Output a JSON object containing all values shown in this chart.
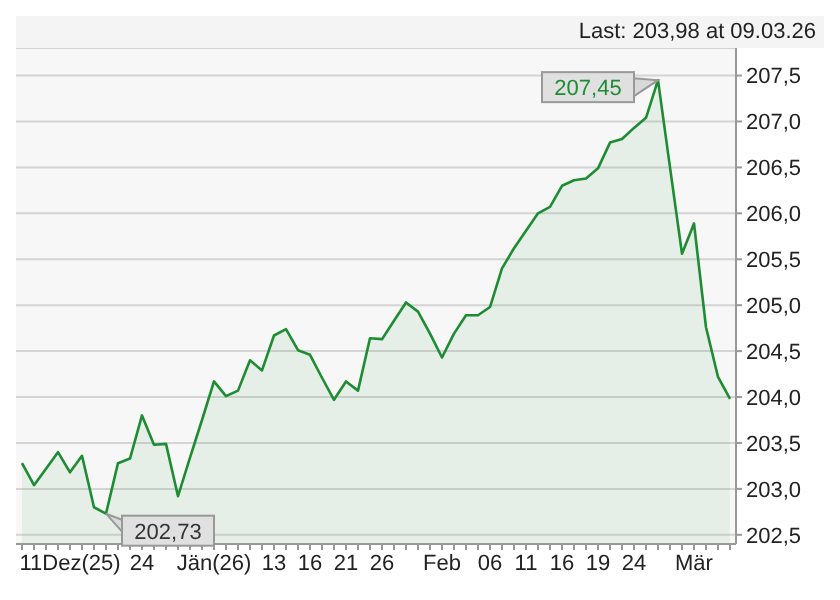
{
  "chart_data": {
    "type": "area",
    "title": "Last: 203,98 at 09.03.26",
    "categories": [
      null,
      null,
      null,
      null,
      "11Dez(25)",
      null,
      null,
      null,
      null,
      null,
      "24",
      null,
      null,
      null,
      null,
      null,
      "Jän(26)",
      null,
      null,
      null,
      null,
      "13",
      null,
      null,
      "16",
      null,
      null,
      "21",
      null,
      null,
      "26",
      null,
      null,
      null,
      null,
      "Feb",
      null,
      null,
      null,
      "06",
      null,
      null,
      "11",
      null,
      null,
      "16",
      null,
      null,
      "19",
      null,
      null,
      "24",
      null,
      null,
      null,
      null,
      "Mär",
      null,
      null,
      null
    ],
    "series": [
      {
        "color": "#1e8c32",
        "values": [
          203.28,
          203.04,
          203.22,
          203.4,
          203.18,
          203.36,
          202.8,
          202.73,
          203.28,
          203.33,
          203.8,
          203.48,
          203.49,
          202.92,
          203.34,
          203.75,
          204.17,
          204.01,
          204.07,
          204.4,
          204.29,
          204.67,
          204.74,
          204.51,
          204.46,
          204.21,
          203.97,
          204.17,
          204.07,
          204.64,
          204.63,
          204.83,
          205.03,
          204.93,
          204.69,
          204.43,
          204.69,
          204.89,
          204.89,
          204.98,
          205.4,
          205.62,
          205.81,
          206.0,
          206.07,
          206.3,
          206.36,
          206.38,
          206.49,
          206.77,
          206.81,
          206.93,
          207.04,
          207.45,
          206.5,
          205.56,
          205.89,
          204.76,
          204.22,
          203.98
        ]
      }
    ],
    "ylim": [
      202.4,
      207.8
    ],
    "yticks": [
      {
        "value": 202.5,
        "label": "202,5"
      },
      {
        "value": 203,
        "label": "203,0"
      },
      {
        "value": 203.5,
        "label": "203,5"
      },
      {
        "value": 204,
        "label": "204,0"
      },
      {
        "value": 204.5,
        "label": "204,5"
      },
      {
        "value": 205,
        "label": "205,0"
      },
      {
        "value": 205.5,
        "label": "205,5"
      },
      {
        "value": 206,
        "label": "206,0"
      },
      {
        "value": 206.5,
        "label": "206,5"
      },
      {
        "value": 207,
        "label": "207,0"
      },
      {
        "value": 207.5,
        "label": "207,5"
      }
    ],
    "grid": "y",
    "legend": false,
    "marker": "none",
    "line_style": "solid",
    "annotations": [
      "207,45",
      "202,73"
    ]
  }
}
